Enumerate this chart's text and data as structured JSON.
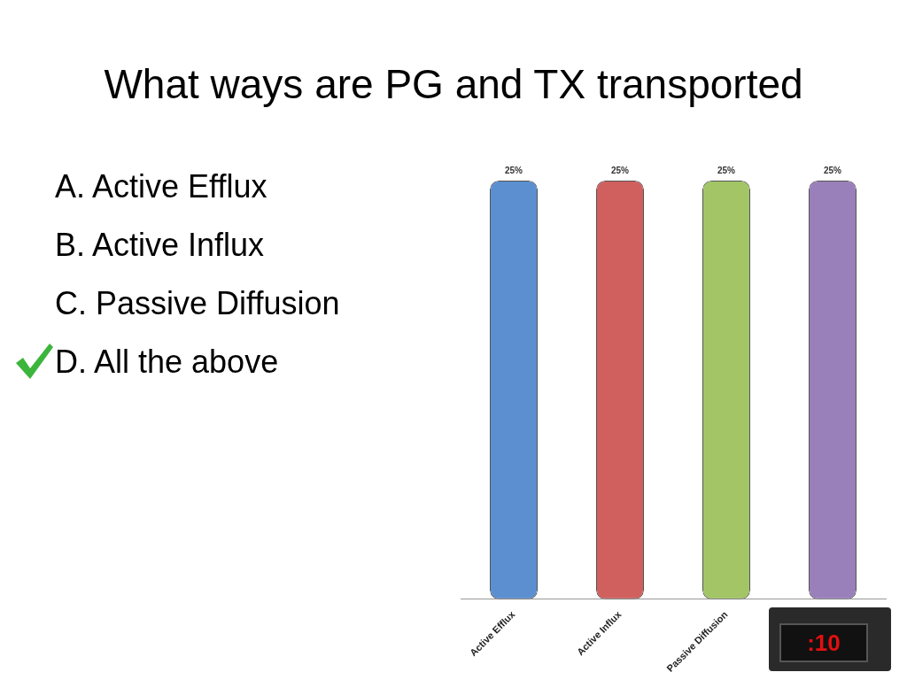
{
  "chart_data": {
    "type": "bar",
    "title": "What ways are PG and TX transported",
    "categories": [
      "Active Efflux",
      "Active Influx",
      "Passive Diffusion",
      null
    ],
    "values": [
      25,
      25,
      25,
      25
    ],
    "value_labels": [
      "25%",
      "25%",
      "25%",
      "25%"
    ],
    "colors": [
      "#5b8fd0",
      "#d0605e",
      "#a3c565",
      "#9a80bb"
    ],
    "annotations": [
      "A.  Active Efflux",
      "B.  Active Influx",
      "C.  Passive Diffusion",
      "D.  All the above",
      ":10"
    ]
  }
}
